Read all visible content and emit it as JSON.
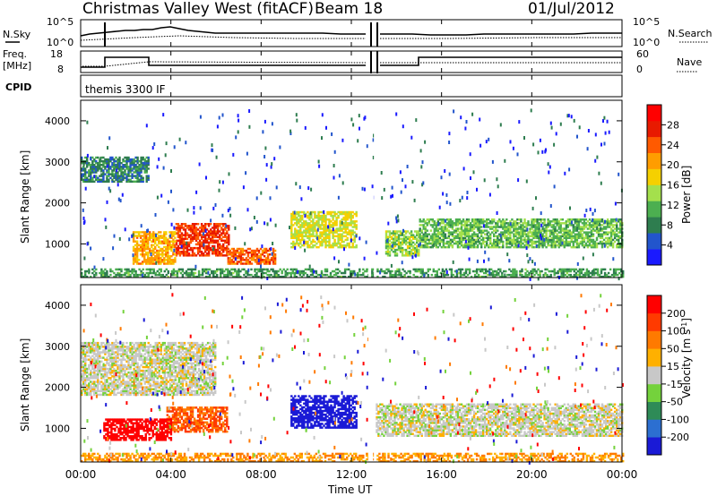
{
  "header": {
    "station": "Christmas Valley West (fitACF)",
    "beam": "Beam 18",
    "date": "01/Jul/2012"
  },
  "time_axis": {
    "label": "Time UT",
    "ticks": [
      "00:00",
      "04:00",
      "08:00",
      "12:00",
      "16:00",
      "20:00",
      "00:00"
    ]
  },
  "nsky_panel": {
    "left_label": "N.Sky",
    "right_label": "N.Search",
    "left_ticks": [
      "10^5",
      "10^0"
    ],
    "right_ticks": [
      "10^5",
      "10^0"
    ]
  },
  "freq_panel": {
    "left_label_1": "Freq.",
    "left_label_2": "[MHz]",
    "right_label": "Nave",
    "left_ticks": [
      "18",
      "8"
    ],
    "right_ticks": [
      "60",
      "0"
    ]
  },
  "cpid": {
    "label": "CPID",
    "value": "themis 3300 IF"
  },
  "power_panel": {
    "ylabel": "Slant Range [km]",
    "yticks": [
      "4000",
      "3000",
      "2000",
      "1000"
    ],
    "colorbar_label": "Power [dB]",
    "colorbar_ticks": [
      "28",
      "24",
      "20",
      "16",
      "12",
      "8",
      "4"
    ],
    "colors": [
      "#1a1aff",
      "#2255cc",
      "#2e7d4f",
      "#4caf50",
      "#a4e04c",
      "#f5d000",
      "#ff9d00",
      "#ff5a00",
      "#e81a00",
      "#ff0000"
    ]
  },
  "velocity_panel": {
    "ylabel": "Slant Range [km]",
    "yticks": [
      "4000",
      "3000",
      "2000",
      "1000"
    ],
    "colorbar_label": "Velocity [m s^-1]",
    "colorbar_ticks": [
      "200",
      "100",
      "50",
      "15",
      "-15",
      "-50",
      "-100",
      "-200"
    ],
    "colors": [
      "#1a1ad6",
      "#2c6fd1",
      "#2e8b57",
      "#74d23c",
      "#c8c8c8",
      "#ffb000",
      "#ff7a00",
      "#ff3a00",
      "#ff0000"
    ]
  },
  "chart_data": [
    {
      "type": "heatmap",
      "title": "Power",
      "xlabel": "Time UT",
      "ylabel": "Slant Range [km]",
      "xlim": [
        0,
        24
      ],
      "ylim": [
        180,
        4500
      ],
      "colorbar": {
        "label": "Power [dB]",
        "range": [
          0,
          32
        ],
        "ticks": [
          4,
          8,
          12,
          16,
          20,
          24,
          28
        ]
      },
      "regions": [
        {
          "t": [
            4.2,
            6.6
          ],
          "range": [
            700,
            1500
          ],
          "value": 26
        },
        {
          "t": [
            6.5,
            8.6
          ],
          "range": [
            500,
            900
          ],
          "value": 24
        },
        {
          "t": [
            9.3,
            12.2
          ],
          "range": [
            900,
            1800
          ],
          "value": 16
        },
        {
          "t": [
            2.3,
            4.2
          ],
          "range": [
            500,
            1300
          ],
          "value": 20
        },
        {
          "t": [
            0.0,
            3.0
          ],
          "range": [
            2500,
            3100
          ],
          "value": 8
        },
        {
          "t": [
            13.5,
            15.0
          ],
          "range": [
            700,
            1300
          ],
          "value": 14
        },
        {
          "t": [
            15.0,
            24.0
          ],
          "range": [
            900,
            1600
          ],
          "value": 12
        },
        {
          "t": [
            0.0,
            24.0
          ],
          "range": [
            180,
            400
          ],
          "value": 10
        }
      ]
    },
    {
      "type": "heatmap",
      "title": "Velocity",
      "xlabel": "Time UT",
      "ylabel": "Slant Range [km]",
      "xlim": [
        0,
        24
      ],
      "ylim": [
        180,
        4500
      ],
      "colorbar": {
        "label": "Velocity [m s^-1]",
        "ticks": [
          200,
          100,
          50,
          15,
          -15,
          -50,
          -100,
          -200
        ]
      },
      "regions": [
        {
          "t": [
            9.3,
            12.2
          ],
          "range": [
            1000,
            1800
          ],
          "value": 200
        },
        {
          "t": [
            3.8,
            6.5
          ],
          "range": [
            900,
            1500
          ],
          "value": -100
        },
        {
          "t": [
            1.0,
            4.0
          ],
          "range": [
            700,
            1200
          ],
          "value": -200
        },
        {
          "t": [
            0.0,
            6.0
          ],
          "range": [
            1800,
            3100
          ],
          "value": 0
        },
        {
          "t": [
            13.0,
            24.0
          ],
          "range": [
            800,
            1600
          ],
          "value": 0
        },
        {
          "t": [
            0.0,
            24.0
          ],
          "range": [
            180,
            400
          ],
          "value": -50
        }
      ]
    }
  ]
}
